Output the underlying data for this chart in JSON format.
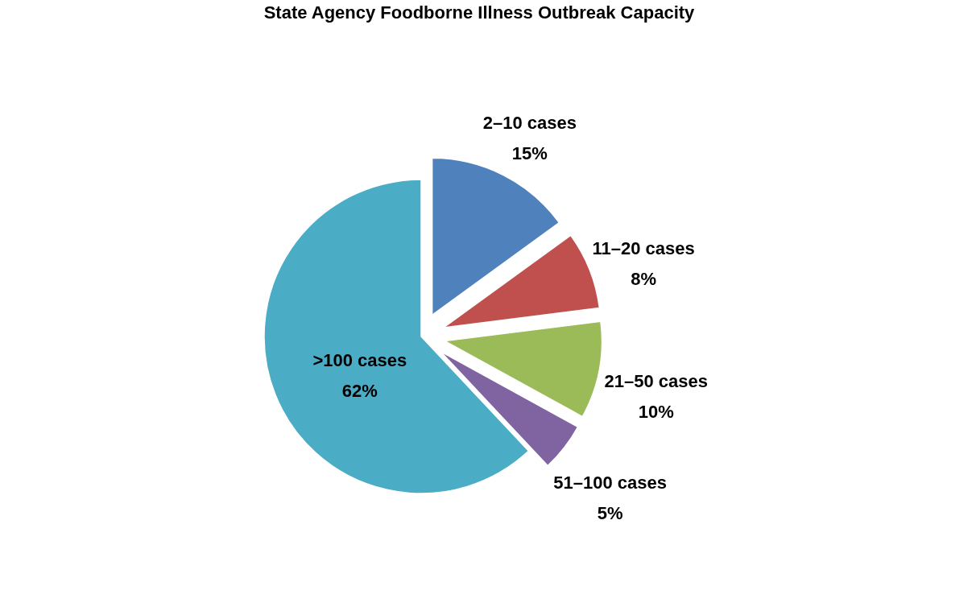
{
  "chart_data": {
    "type": "pie",
    "title": "State Agency Foodborne Illness Outbreak Capacity",
    "categories": [
      "2–10 cases",
      "11–20 cases",
      "21–50 cases",
      "51–100 cases",
      ">100 cases"
    ],
    "values": [
      15,
      8,
      10,
      5,
      62
    ],
    "value_labels": [
      "15%",
      "8%",
      "10%",
      "5%",
      "62%"
    ],
    "colors": [
      "#4f81bd",
      "#c0504d",
      "#9bbb59",
      "#8064a2",
      "#4bacc6"
    ]
  }
}
